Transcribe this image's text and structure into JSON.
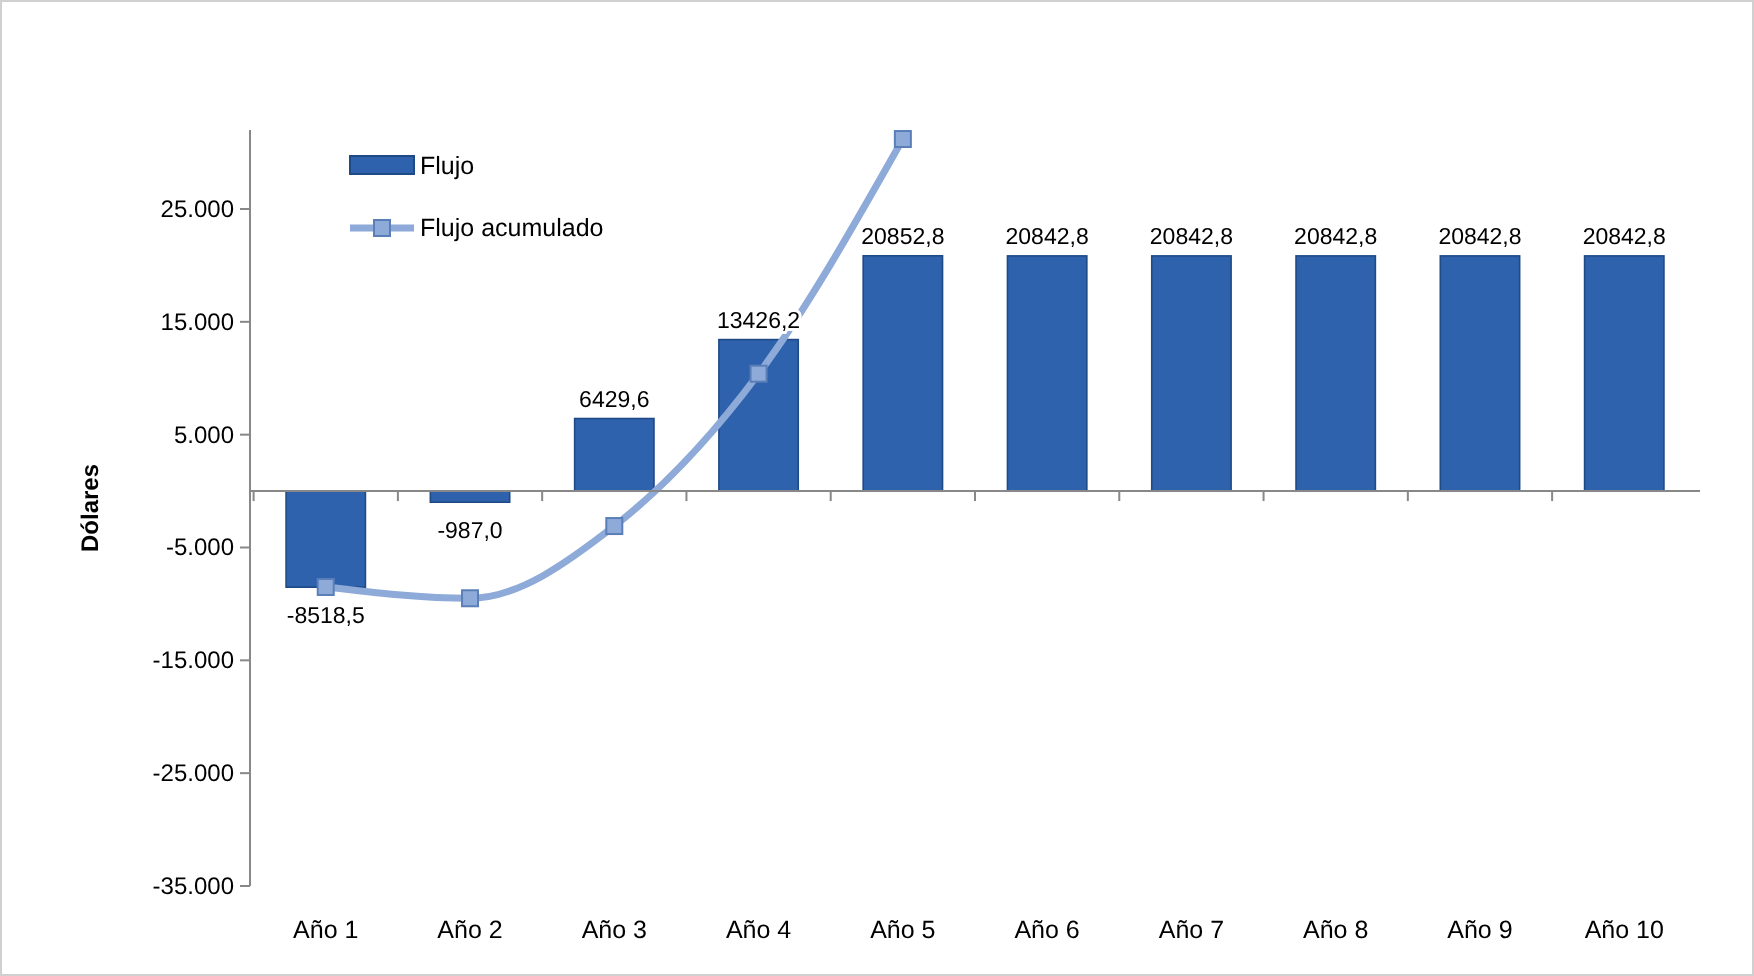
{
  "chart_data": {
    "type": "bar",
    "ylabel": "Dólares",
    "categories": [
      "Año 1",
      "Año 2",
      "Año 3",
      "Año 4",
      "Año 5",
      "Año 6",
      "Año 7",
      "Año 8",
      "Año 9",
      "Año 10"
    ],
    "series": [
      {
        "name": "Flujo",
        "color": "#2e62ad",
        "values": [
          -8518.5,
          -987.0,
          6429.6,
          13426.2,
          20852.8,
          20842.8,
          20842.8,
          20842.8,
          20842.8,
          20842.8
        ],
        "value_labels": [
          "-8518,5",
          "-987,0",
          "6429,6",
          "13426,2",
          "20852,8",
          "20842,8",
          "20842,8",
          "20842,8",
          "20842,8",
          "20842,8"
        ]
      },
      {
        "name": "Flujo acumulado",
        "type": "line",
        "color": "#8eaad8",
        "marker": "square",
        "values": [
          -8500,
          -9500,
          -3100,
          10400,
          31200,
          null,
          null,
          null,
          null,
          null
        ]
      }
    ],
    "ylim": [
      -35000,
      32000
    ],
    "yticks": [
      {
        "value": -35000,
        "label": "-35.000"
      },
      {
        "value": -25000,
        "label": "-25.000"
      },
      {
        "value": -15000,
        "label": "-15.000"
      },
      {
        "value": -5000,
        "label": "-5.000"
      },
      {
        "value": 5000,
        "label": "5.000"
      },
      {
        "value": 15000,
        "label": "15.000"
      },
      {
        "value": 25000,
        "label": "25.000"
      }
    ],
    "grid": false,
    "legend": "top left"
  }
}
